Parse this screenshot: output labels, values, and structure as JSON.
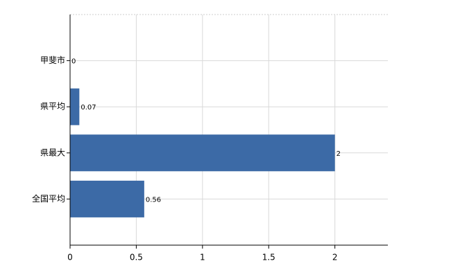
{
  "chart_data": {
    "type": "bar",
    "orientation": "horizontal",
    "categories": [
      "甲斐市",
      "県平均",
      "県最大",
      "全国平均"
    ],
    "values": [
      0,
      0.07,
      2,
      0.56
    ],
    "color": "#3c6aa6",
    "xlim": [
      0,
      2.4
    ],
    "xticks": [
      0,
      0.5,
      1,
      1.5,
      2
    ],
    "grid": true
  }
}
